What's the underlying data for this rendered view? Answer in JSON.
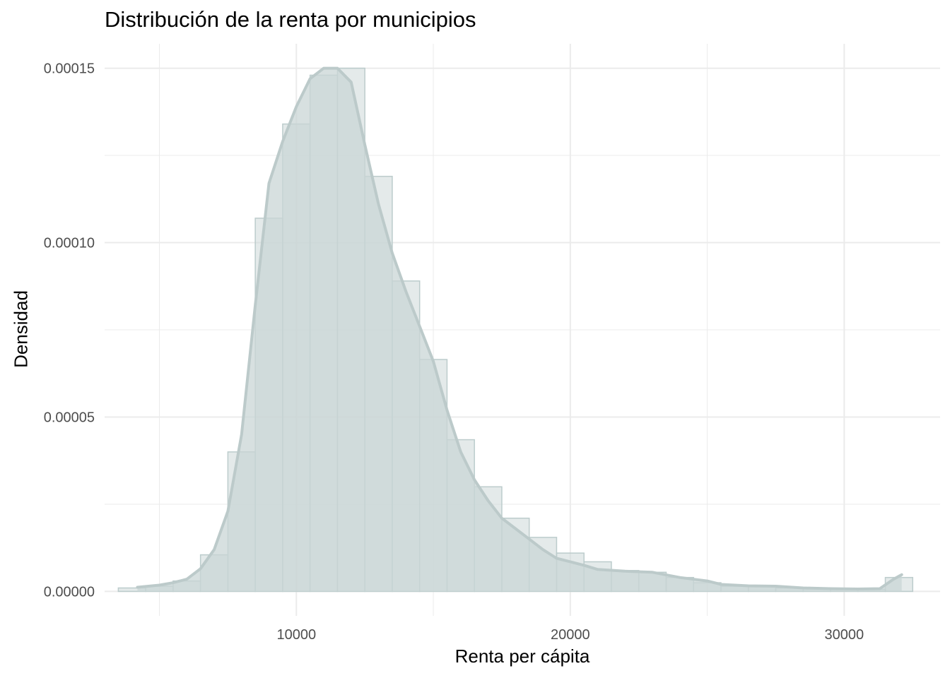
{
  "chart_data": {
    "type": "bar",
    "subtype": "histogram-with-density",
    "title": "Distribución de la renta por municipios",
    "xlabel": "Renta per cápita",
    "ylabel": "Densidad",
    "xlim": [
      3000,
      33500
    ],
    "ylim": [
      -7e-06,
      0.000157
    ],
    "x_ticks": [
      10000,
      20000,
      30000
    ],
    "x_tick_labels": [
      "10000",
      "20000",
      "30000"
    ],
    "y_ticks": [
      0,
      5e-05,
      0.0001,
      0.00015
    ],
    "y_tick_labels": [
      "0.00000",
      "0.00005",
      "0.00010",
      "0.00015"
    ],
    "grid": true,
    "legend": "none",
    "colors": {
      "bar_fill": "#c9d6d6",
      "bar_stroke": "#bccccc",
      "density_line": "#bccaca",
      "density_fill": "#c9d6d6",
      "grid": "#ebebeb"
    },
    "bins": [
      {
        "x0": 3500,
        "x1": 4500,
        "density": 1e-06
      },
      {
        "x0": 4500,
        "x1": 5500,
        "density": 1.5e-06
      },
      {
        "x0": 5500,
        "x1": 6500,
        "density": 3e-06
      },
      {
        "x0": 6500,
        "x1": 7500,
        "density": 1.05e-05
      },
      {
        "x0": 7500,
        "x1": 8500,
        "density": 4e-05
      },
      {
        "x0": 8500,
        "x1": 9500,
        "density": 0.000107
      },
      {
        "x0": 9500,
        "x1": 10500,
        "density": 0.000134
      },
      {
        "x0": 10500,
        "x1": 11500,
        "density": 0.000148
      },
      {
        "x0": 11500,
        "x1": 12500,
        "density": 0.00015
      },
      {
        "x0": 12500,
        "x1": 13500,
        "density": 0.000119
      },
      {
        "x0": 13500,
        "x1": 14500,
        "density": 8.9e-05
      },
      {
        "x0": 14500,
        "x1": 15500,
        "density": 6.65e-05
      },
      {
        "x0": 15500,
        "x1": 16500,
        "density": 4.35e-05
      },
      {
        "x0": 16500,
        "x1": 17500,
        "density": 3e-05
      },
      {
        "x0": 17500,
        "x1": 18500,
        "density": 2.1e-05
      },
      {
        "x0": 18500,
        "x1": 19500,
        "density": 1.55e-05
      },
      {
        "x0": 19500,
        "x1": 20500,
        "density": 1.1e-05
      },
      {
        "x0": 20500,
        "x1": 21500,
        "density": 8.5e-06
      },
      {
        "x0": 21500,
        "x1": 22500,
        "density": 6e-06
      },
      {
        "x0": 22500,
        "x1": 23500,
        "density": 5.5e-06
      },
      {
        "x0": 23500,
        "x1": 24500,
        "density": 4e-06
      },
      {
        "x0": 24500,
        "x1": 25500,
        "density": 2.5e-06
      },
      {
        "x0": 25500,
        "x1": 26500,
        "density": 1.5e-06
      },
      {
        "x0": 26500,
        "x1": 27500,
        "density": 1.5e-06
      },
      {
        "x0": 27500,
        "x1": 28500,
        "density": 1e-06
      },
      {
        "x0": 28500,
        "x1": 29500,
        "density": 8e-07
      },
      {
        "x0": 29500,
        "x1": 30500,
        "density": 7e-07
      },
      {
        "x0": 30500,
        "x1": 31500,
        "density": 6e-07
      },
      {
        "x0": 31500,
        "x1": 32500,
        "density": 4e-06
      }
    ],
    "density_curve": [
      [
        4200,
        1.2e-06
      ],
      [
        5000,
        1.8e-06
      ],
      [
        5500,
        2.5e-06
      ],
      [
        6000,
        3.5e-06
      ],
      [
        6500,
        6.5e-06
      ],
      [
        7000,
        1.2e-05
      ],
      [
        7500,
        2.3e-05
      ],
      [
        8000,
        4.5e-05
      ],
      [
        8500,
        8.2e-05
      ],
      [
        9000,
        0.000117
      ],
      [
        9500,
        0.000129
      ],
      [
        10000,
        0.000139
      ],
      [
        10500,
        0.000147
      ],
      [
        11000,
        0.00015
      ],
      [
        11500,
        0.00015
      ],
      [
        12000,
        0.000146
      ],
      [
        12500,
        0.000128
      ],
      [
        13000,
        0.000111
      ],
      [
        13500,
        9.7e-05
      ],
      [
        14000,
        8.6e-05
      ],
      [
        14500,
        7.6e-05
      ],
      [
        15000,
        6.6e-05
      ],
      [
        15500,
        5.2e-05
      ],
      [
        16000,
        4e-05
      ],
      [
        16500,
        3.2e-05
      ],
      [
        17000,
        2.6e-05
      ],
      [
        17500,
        2.1e-05
      ],
      [
        18000,
        1.8e-05
      ],
      [
        18500,
        1.5e-05
      ],
      [
        19000,
        1.2e-05
      ],
      [
        19500,
        9.5e-06
      ],
      [
        20000,
        8.5e-06
      ],
      [
        20500,
        7.5e-06
      ],
      [
        21000,
        6.3e-06
      ],
      [
        22000,
        5.8e-06
      ],
      [
        23000,
        5.5e-06
      ],
      [
        24000,
        4e-06
      ],
      [
        25000,
        3e-06
      ],
      [
        25500,
        2e-06
      ],
      [
        26500,
        1.6e-06
      ],
      [
        27500,
        1.5e-06
      ],
      [
        28500,
        1e-06
      ],
      [
        29500,
        8e-07
      ],
      [
        30500,
        7e-07
      ],
      [
        31300,
        8e-07
      ],
      [
        31800,
        3.5e-06
      ],
      [
        32100,
        4.8e-06
      ]
    ]
  }
}
